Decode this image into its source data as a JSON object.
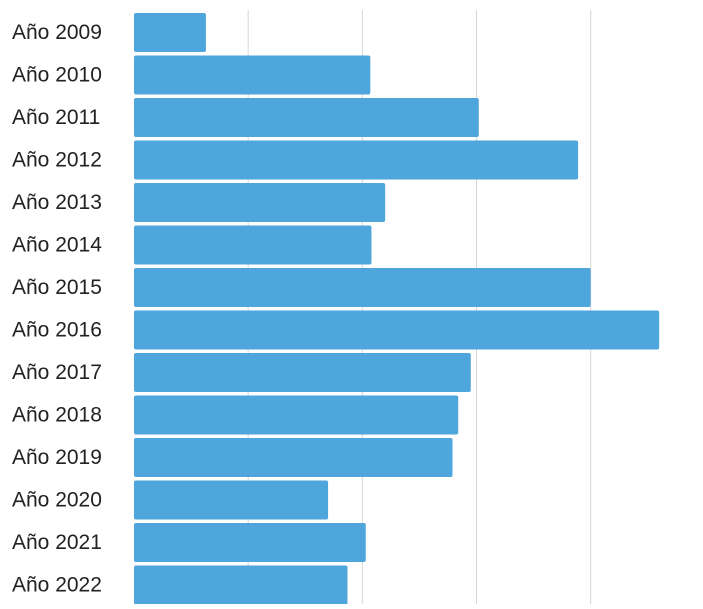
{
  "chart_data": {
    "type": "bar",
    "orientation": "horizontal",
    "categories": [
      "Año 2009",
      "Año 2010",
      "Año 2011",
      "Año 2012",
      "Año 2013",
      "Año 2014",
      "Año 2015",
      "Año 2016",
      "Año 2017",
      "Año 2018",
      "Año 2019",
      "Año 2020",
      "Año 2021",
      "Año 2022"
    ],
    "values": [
      6.3,
      20.7,
      30.2,
      38.9,
      22.0,
      20.8,
      40.0,
      46.0,
      29.5,
      28.4,
      27.9,
      17.0,
      20.3,
      18.7
    ],
    "xlim": [
      0,
      48
    ],
    "grid": true,
    "bar_color": "#4ea6dc",
    "grid_color": "#d6d6d6",
    "label_color": "#222222"
  }
}
